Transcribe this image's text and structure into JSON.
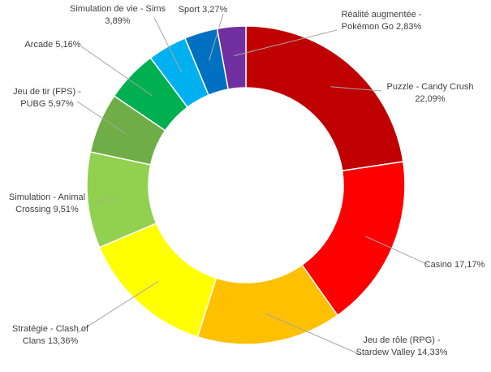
{
  "chart_data": {
    "type": "donut",
    "categories": [
      "Puzzle - Candy Crush",
      "Casino",
      "Jeu de rôle (RPG) - Stardew Valley",
      "Stratégie - Clash of Clans",
      "Simulation - Animal Crossing",
      "Jeu de tir (FPS) - PUBG",
      "Arcade",
      "Simulation de vie - Sims",
      "Sport",
      "Réalité augmentée - Pokémon Go"
    ],
    "values": [
      22.09,
      17.17,
      14.33,
      13.36,
      9.51,
      5.97,
      5.16,
      3.89,
      3.27,
      2.83
    ],
    "value_labels": [
      "22,09%",
      "17,17%",
      "14,33%",
      "13,36%",
      "9,51%",
      "5,97%",
      "5,16%",
      "3,89%",
      "3,27%",
      "2,83%"
    ],
    "colors": [
      "#c00000",
      "#ff0000",
      "#ffc000",
      "#ffff00",
      "#92d050",
      "#70ad47",
      "#00b050",
      "#00b0f0",
      "#0070c0",
      "#7030a0"
    ]
  }
}
